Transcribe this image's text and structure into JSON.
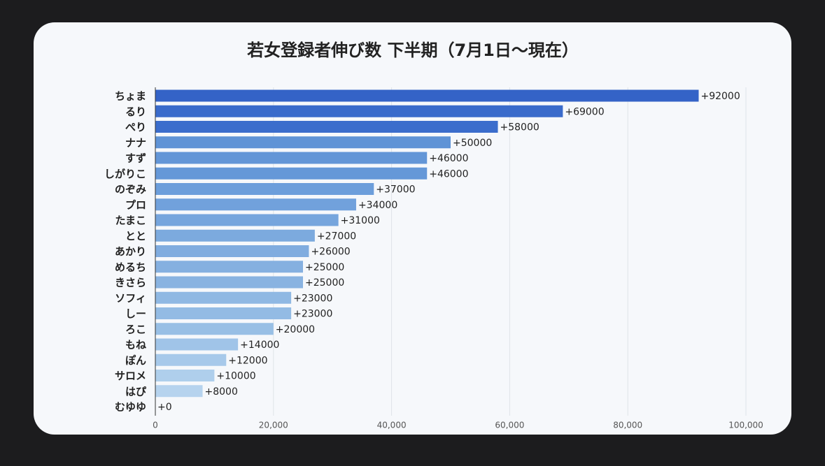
{
  "chart_data": {
    "type": "hbar",
    "title": "若女登録者伸び数 下半期（7月1日〜現在）",
    "categories": [
      "ちょま",
      "るり",
      "ぺり",
      "ナナ",
      "すず",
      "しがりこ",
      "のぞみ",
      "プロ",
      "たまこ",
      "とと",
      "あかり",
      "めるち",
      "きさら",
      "ソフィ",
      "しー",
      "ろこ",
      "もね",
      "ぽん",
      "サロメ",
      "はぴ",
      "むゆゆ"
    ],
    "values": [
      92000,
      69000,
      58000,
      50000,
      46000,
      46000,
      37000,
      34000,
      31000,
      27000,
      26000,
      25000,
      25000,
      23000,
      23000,
      20000,
      14000,
      12000,
      10000,
      8000,
      0
    ],
    "value_labels": [
      "+92000",
      "+69000",
      "+58000",
      "+50000",
      "+46000",
      "+46000",
      "+37000",
      "+34000",
      "+31000",
      "+27000",
      "+26000",
      "+25000",
      "+25000",
      "+23000",
      "+23000",
      "+20000",
      "+14000",
      "+12000",
      "+10000",
      "+8000",
      "+0"
    ],
    "colors": [
      "#3463c7",
      "#3a6bcb",
      "#3b6dcc",
      "#5f93d6",
      "#6396d7",
      "#6598d8",
      "#6c9edb",
      "#71a1dc",
      "#76a5dd",
      "#7caade",
      "#80acdf",
      "#85b0e0",
      "#89b3e1",
      "#8fb8e3",
      "#93bbe4",
      "#98bfe5",
      "#a0c4e8",
      "#a7c9ea",
      "#afcfec",
      "#b6d3ee",
      "#bdd8f0"
    ],
    "xlim": [
      0,
      100000
    ],
    "xticks": [
      0,
      {
        "value": 20000,
        "label": "20,000"
      },
      {
        "value": 40000,
        "label": "40,000"
      },
      {
        "value": 60000,
        "label": "60,000"
      },
      {
        "value": 80000,
        "label": "80,000"
      },
      {
        "value": 100000,
        "label": "100,000"
      }
    ],
    "grid": true
  }
}
